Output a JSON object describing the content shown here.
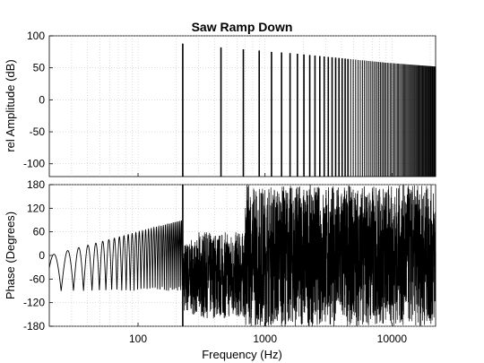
{
  "chart_data": [
    {
      "type": "line",
      "title": "Saw Ramp Down",
      "xlabel": "",
      "ylabel": "rel Amplitude (dB)",
      "xscale": "log",
      "xlim": [
        20,
        22050
      ],
      "ylim": [
        -120,
        100
      ],
      "yticks": [
        100,
        50,
        0,
        -50,
        -100
      ],
      "grid": "dotted",
      "fundamental_hz": 225,
      "series": [
        {
          "peaks": [
            {
              "x": 225,
              "y": 88
            },
            {
              "x": 450,
              "y": 82
            },
            {
              "x": 675,
              "y": 79
            },
            {
              "x": 900,
              "y": 77
            },
            {
              "x": 1125,
              "y": 75
            },
            {
              "x": 1350,
              "y": 74
            },
            {
              "x": 1575,
              "y": 73
            },
            {
              "x": 1800,
              "y": 72
            },
            {
              "x": 2025,
              "y": 71
            },
            {
              "x": 2250,
              "y": 70
            },
            {
              "x": 4500,
              "y": 64
            },
            {
              "x": 9000,
              "y": 58
            },
            {
              "x": 22050,
              "y": 52
            }
          ],
          "floor": -120
        }
      ]
    },
    {
      "type": "line",
      "title": "",
      "xlabel": "Frequency (Hz)",
      "ylabel": "Phase (Degrees)",
      "xscale": "log",
      "xlim": [
        20,
        22050
      ],
      "ylim": [
        -180,
        180
      ],
      "yticks": [
        180,
        120,
        60,
        0,
        -60,
        -120,
        -180
      ],
      "xticks": [
        100,
        1000,
        10000
      ],
      "xtick_labels": [
        "100",
        "1000",
        "10000"
      ],
      "grid": "dotted",
      "series": [
        {
          "below_fundamental": {
            "x_start": 20,
            "x_end": 225,
            "y_start": 0,
            "y_end": 90,
            "y_low": -90
          },
          "above_fundamental": {
            "x_start": 225,
            "x_end": 22050,
            "y_min": -180,
            "y_max": 180
          }
        }
      ]
    }
  ]
}
